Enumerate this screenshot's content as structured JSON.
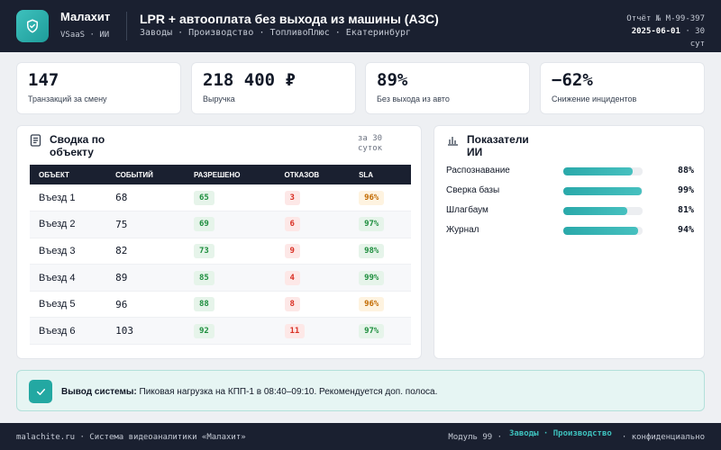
{
  "header": {
    "brand": "Малахит",
    "brand_sub": "VSaaS · ИИ",
    "title": "LPR + автооплата без выхода из машины (АЗС)",
    "crumbs": "Заводы · Производство · ТопливоПлюс · Екатеринбург",
    "report": "Отчёт № M-99-397",
    "date": "2025-06-01",
    "period": "· 30",
    "period2": "сут"
  },
  "kpis": [
    {
      "value": "147",
      "label": "Транзакций за смену"
    },
    {
      "value": "218 400 ₽",
      "label": "Выручка"
    },
    {
      "value": "89%",
      "label": "Без выхода из авто"
    },
    {
      "value": "−62%",
      "label": "Снижение инцидентов"
    }
  ],
  "summary": {
    "title": "Сводка по объекту",
    "period": "за 30 суток",
    "columns": [
      "ОБЪЕКТ",
      "СОБЫТИЙ",
      "РАЗРЕШЕНО",
      "ОТКАЗОВ",
      "SLA"
    ],
    "rows": [
      {
        "name": "Въезд 1",
        "events": "68",
        "allowed": "65",
        "denied": "3",
        "sla": "96%",
        "sla_status": "o"
      },
      {
        "name": "Въезд 2",
        "events": "75",
        "allowed": "69",
        "denied": "6",
        "sla": "97%",
        "sla_status": "g"
      },
      {
        "name": "Въезд 3",
        "events": "82",
        "allowed": "73",
        "denied": "9",
        "sla": "98%",
        "sla_status": "g"
      },
      {
        "name": "Въезд 4",
        "events": "89",
        "allowed": "85",
        "denied": "4",
        "sla": "99%",
        "sla_status": "g"
      },
      {
        "name": "Въезд 5",
        "events": "96",
        "allowed": "88",
        "denied": "8",
        "sla": "96%",
        "sla_status": "o"
      },
      {
        "name": "Въезд 6",
        "events": "103",
        "allowed": "92",
        "denied": "11",
        "sla": "97%",
        "sla_status": "g"
      }
    ]
  },
  "ai": {
    "title": "Показатели ИИ",
    "metrics": [
      {
        "label": "Распознавание",
        "value": "88%",
        "fraction": 0.88
      },
      {
        "label": "Сверка базы",
        "value": "99%",
        "fraction": 0.99
      },
      {
        "label": "Шлагбаум",
        "value": "81%",
        "fraction": 0.81
      },
      {
        "label": "Журнал",
        "value": "94%",
        "fraction": 0.94
      }
    ]
  },
  "alert": {
    "label": "Вывод системы:",
    "text": "Пиковая нагрузка на КПП-1 в 08:40–09:10. Рекомендуется доп. полоса."
  },
  "footer": {
    "left": "malachite.ru · Система видеоаналитики «Малахит»",
    "module": "Модуль 99 ·",
    "accent": "Заводы · Производство",
    "right": "· конфиденциально"
  },
  "colors": {
    "accent": "#23a8a2",
    "dark": "#1a2030"
  }
}
